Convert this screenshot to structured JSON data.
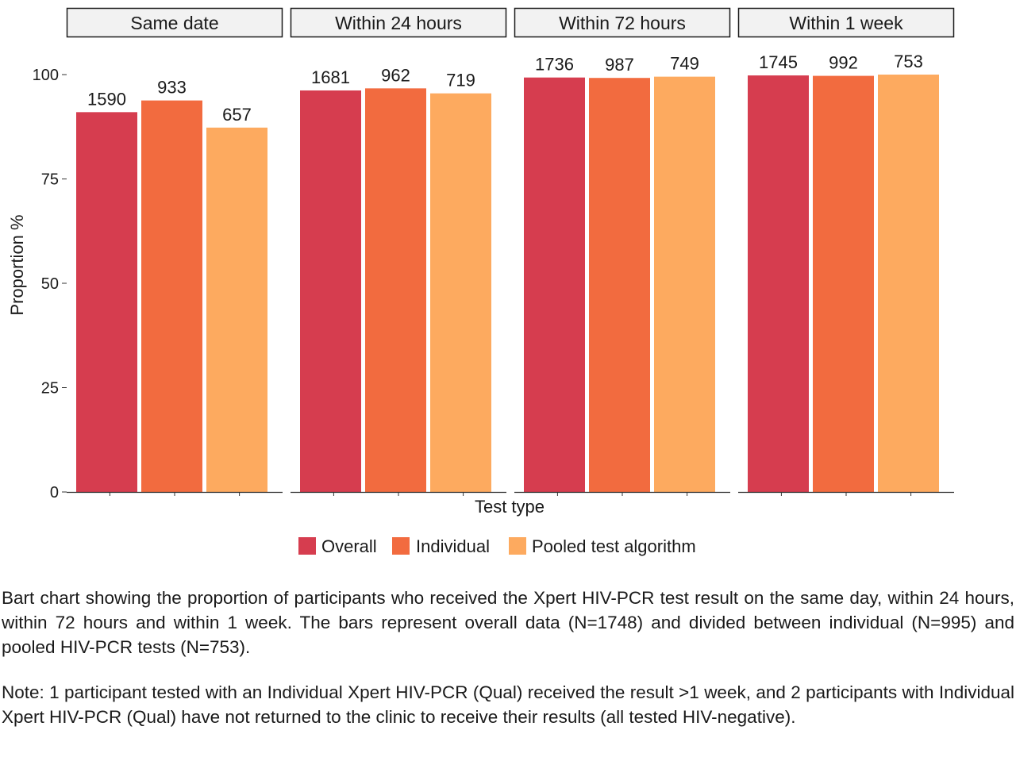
{
  "chart_data": {
    "type": "bar",
    "panels": [
      "Same date",
      "Within 24 hours",
      "Within 72 hours",
      "Within 1 week"
    ],
    "series": [
      {
        "name": "Overall",
        "color": "#d63d4f",
        "values": [
          91.0,
          96.2,
          99.3,
          99.8
        ],
        "labels": [
          "1590",
          "1681",
          "1736",
          "1745"
        ]
      },
      {
        "name": "Individual",
        "color": "#f26b3f",
        "values": [
          93.8,
          96.7,
          99.2,
          99.7
        ],
        "labels": [
          "933",
          "962",
          "987",
          "992"
        ]
      },
      {
        "name": "Pooled test algorithm",
        "color": "#fdaa5f",
        "values": [
          87.3,
          95.5,
          99.5,
          100.0
        ],
        "labels": [
          "657",
          "719",
          "749",
          "753"
        ]
      }
    ],
    "xlabel": "Test type",
    "ylabel": "Proportion %",
    "ylim": [
      0,
      100
    ],
    "yticks": [
      0,
      25,
      50,
      75,
      100
    ],
    "legend_position": "bottom",
    "grid": false
  },
  "caption": {
    "paragraph_1": "Bart chart showing the proportion of participants who received the Xpert HIV-PCR test result on the same day, within 24 hours, within 72 hours and within 1 week. The bars represent overall data (N=1748) and divided between individual (N=995) and pooled HIV-PCR tests (N=753).",
    "paragraph_2": "Note: 1 participant tested with an Individual Xpert HIV-PCR (Qual) received the result >1 week, and 2 participants with Individual Xpert HIV-PCR (Qual) have not returned to the clinic to receive their results (all tested HIV-negative)."
  }
}
